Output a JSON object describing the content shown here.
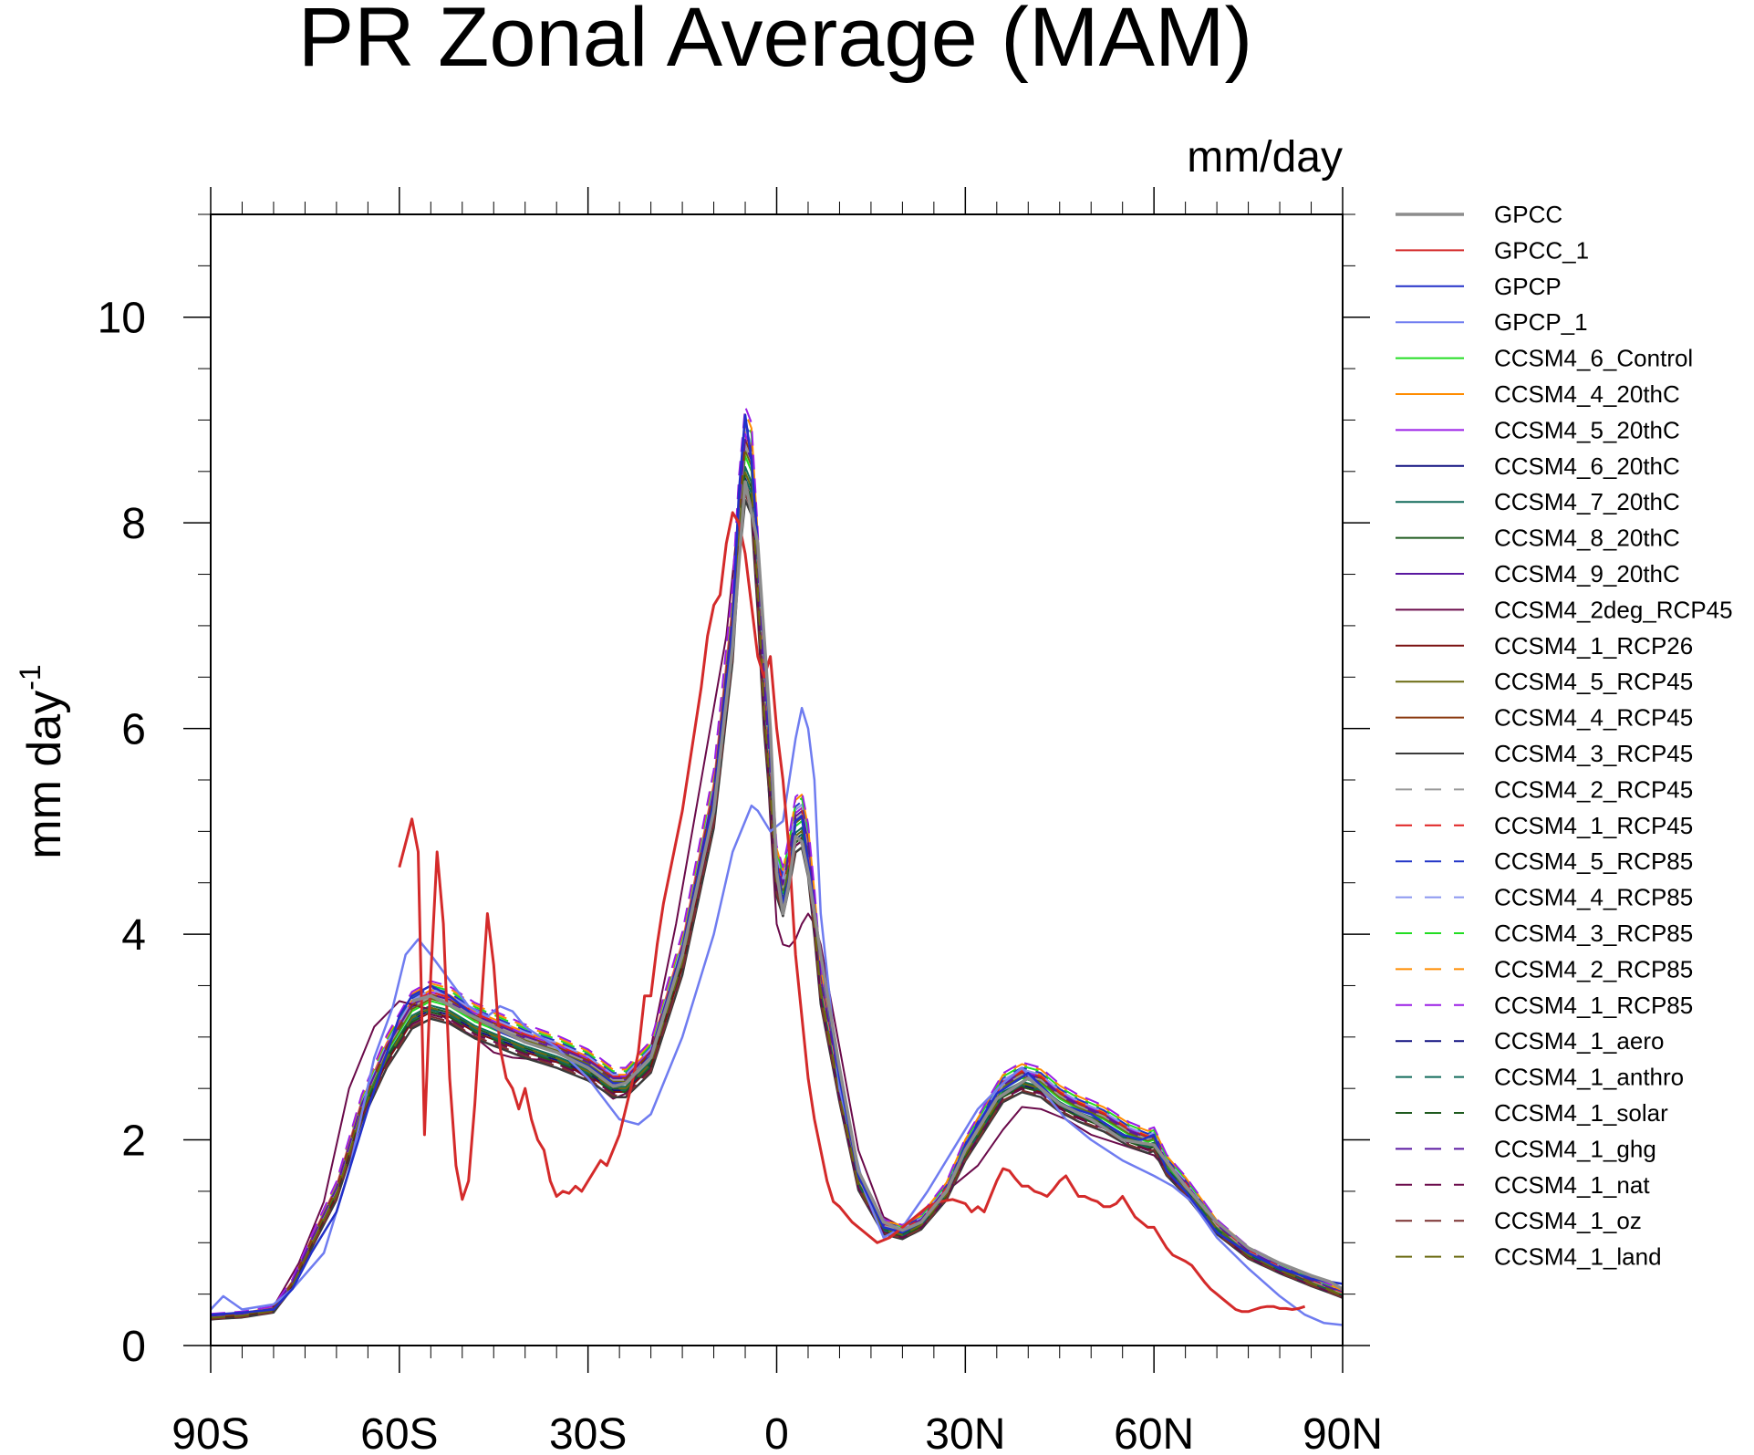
{
  "chart_data": {
    "type": "line",
    "title": "PR Zonal Average (MAM)",
    "units_label": "mm/day",
    "ylabel": "mm day",
    "ylabel_superscript": "-1",
    "xlabel": "",
    "xlim": [
      -90,
      90
    ],
    "ylim": [
      0,
      11
    ],
    "x_ticks": [
      {
        "value": -90,
        "label": "90S"
      },
      {
        "value": -60,
        "label": "60S"
      },
      {
        "value": -30,
        "label": "30S"
      },
      {
        "value": 0,
        "label": "0"
      },
      {
        "value": 30,
        "label": "30N"
      },
      {
        "value": 60,
        "label": "60N"
      },
      {
        "value": 90,
        "label": "90N"
      }
    ],
    "y_ticks": [
      {
        "value": 0,
        "label": "0"
      },
      {
        "value": 2,
        "label": "2"
      },
      {
        "value": 4,
        "label": "4"
      },
      {
        "value": 6,
        "label": "6"
      },
      {
        "value": 8,
        "label": "8"
      },
      {
        "value": 10,
        "label": "10"
      }
    ],
    "grid": false,
    "legend_position": "right",
    "series": [
      {
        "name": "GPCC",
        "color": "#8c8c8c",
        "style": "solid",
        "width": 3.5,
        "x": [
          -58,
          -55,
          -50,
          -45,
          -40,
          -35,
          -30,
          -26,
          -24,
          -20,
          -15,
          -10,
          -7,
          -5,
          -3,
          -1,
          0,
          1,
          2,
          3,
          4,
          5,
          7,
          10,
          13,
          17,
          20,
          23,
          27,
          30,
          35,
          40,
          45,
          50,
          55,
          60,
          65,
          70,
          75,
          80,
          85,
          88,
          90
        ],
        "y": [
          3.35,
          3.4,
          3.25,
          3.1,
          2.95,
          2.85,
          2.7,
          2.52,
          2.55,
          2.8,
          3.8,
          5.2,
          6.8,
          8.4,
          7.8,
          6.0,
          4.6,
          4.2,
          4.5,
          4.95,
          4.9,
          4.6,
          3.8,
          2.7,
          1.7,
          1.2,
          1.12,
          1.2,
          1.5,
          1.9,
          2.4,
          2.6,
          2.35,
          2.2,
          2.0,
          1.95,
          1.55,
          1.2,
          0.95,
          0.8,
          0.68,
          0.62,
          0.55
        ]
      },
      {
        "name": "GPCC_1",
        "color": "#d42a2a",
        "style": "solid",
        "width": 3,
        "x": [
          -60,
          -58,
          -57,
          -56,
          -55,
          -54,
          -53,
          -52,
          -51,
          -50,
          -49,
          -48,
          -47,
          -46,
          -45,
          -44,
          -43,
          -42,
          -41,
          -40,
          -39,
          -38,
          -37,
          -36,
          -35,
          -34,
          -33,
          -32,
          -31,
          -30,
          -29,
          -28,
          -27,
          -26,
          -25,
          -24,
          -23,
          -22,
          -21,
          -20,
          -19,
          -18,
          -17,
          -16,
          -15,
          -14,
          -13,
          -12,
          -11,
          -10,
          -9,
          -8,
          -7,
          -6,
          -5,
          -4,
          -3,
          -2,
          -1,
          0,
          1,
          2,
          3,
          4,
          5,
          6,
          7,
          8,
          9,
          10,
          12,
          14,
          16,
          18,
          20,
          22,
          24,
          26,
          28,
          30,
          31,
          32,
          33,
          34,
          35,
          36,
          37,
          38,
          39,
          40,
          41,
          42,
          43,
          44,
          45,
          46,
          47,
          48,
          49,
          50,
          51,
          52,
          53,
          54,
          55,
          56,
          57,
          58,
          59,
          60,
          61,
          62,
          63,
          64,
          65,
          66,
          67,
          68,
          69,
          70,
          71,
          72,
          73,
          74,
          75,
          76,
          77,
          78,
          79,
          80,
          81,
          82,
          83,
          84
        ],
        "y": [
          4.65,
          5.12,
          4.8,
          2.05,
          3.6,
          4.8,
          4.1,
          2.6,
          1.75,
          1.42,
          1.6,
          2.35,
          3.3,
          4.2,
          3.7,
          2.9,
          2.6,
          2.5,
          2.3,
          2.5,
          2.2,
          2.0,
          1.9,
          1.6,
          1.45,
          1.5,
          1.48,
          1.55,
          1.5,
          1.6,
          1.7,
          1.8,
          1.75,
          1.9,
          2.05,
          2.3,
          2.55,
          2.85,
          3.4,
          3.4,
          3.9,
          4.3,
          4.6,
          4.9,
          5.2,
          5.6,
          6.0,
          6.4,
          6.9,
          7.2,
          7.3,
          7.8,
          8.1,
          8.0,
          7.7,
          7.2,
          6.7,
          6.5,
          6.7,
          6.0,
          5.5,
          4.8,
          3.8,
          3.2,
          2.6,
          2.2,
          1.9,
          1.6,
          1.4,
          1.35,
          1.2,
          1.1,
          1.0,
          1.05,
          1.15,
          1.25,
          1.35,
          1.4,
          1.42,
          1.38,
          1.3,
          1.35,
          1.3,
          1.45,
          1.6,
          1.72,
          1.7,
          1.62,
          1.55,
          1.55,
          1.5,
          1.48,
          1.45,
          1.52,
          1.6,
          1.65,
          1.55,
          1.45,
          1.45,
          1.42,
          1.4,
          1.35,
          1.35,
          1.38,
          1.45,
          1.35,
          1.25,
          1.2,
          1.15,
          1.15,
          1.05,
          0.95,
          0.88,
          0.85,
          0.82,
          0.78,
          0.7,
          0.62,
          0.55,
          0.5,
          0.45,
          0.4,
          0.35,
          0.33,
          0.33,
          0.35,
          0.37,
          0.38,
          0.38,
          0.36,
          0.36,
          0.35,
          0.36,
          0.38
        ]
      },
      {
        "name": "GPCP",
        "color": "#2230c8",
        "style": "solid",
        "width": 2.5,
        "x": [
          -90,
          -85,
          -80,
          -77,
          -74,
          -70,
          -65,
          -60,
          -58,
          -55,
          -52,
          -48,
          -44,
          -40,
          -35,
          -30,
          -26,
          -24,
          -20,
          -15,
          -10,
          -7,
          -6,
          -5,
          -4,
          -3,
          -2,
          -1,
          0,
          1,
          2,
          3,
          4,
          5,
          7,
          10,
          13,
          17,
          20,
          23,
          27,
          30,
          35,
          40,
          45,
          50,
          55,
          58,
          60,
          62,
          65,
          70,
          75,
          80,
          85,
          88,
          90
        ],
        "y": [
          0.3,
          0.32,
          0.35,
          0.55,
          0.9,
          1.3,
          2.3,
          3.2,
          3.4,
          3.5,
          3.4,
          3.2,
          3.05,
          2.95,
          2.85,
          2.72,
          2.55,
          2.55,
          2.82,
          3.85,
          5.3,
          7.0,
          8.3,
          9.05,
          8.6,
          7.8,
          6.8,
          5.8,
          4.7,
          4.3,
          4.55,
          5.1,
          5.15,
          4.7,
          3.8,
          2.6,
          1.65,
          1.15,
          1.1,
          1.2,
          1.5,
          1.95,
          2.45,
          2.65,
          2.35,
          2.25,
          2.05,
          2.0,
          2.05,
          1.7,
          1.5,
          1.1,
          0.9,
          0.75,
          0.65,
          0.62,
          0.6
        ]
      },
      {
        "name": "GPCP_1",
        "color": "#6f7cf0",
        "style": "solid",
        "width": 2.5,
        "x": [
          -90,
          -88,
          -85,
          -80,
          -77,
          -72,
          -68,
          -64,
          -61,
          -59,
          -57,
          -55,
          -52,
          -49,
          -46,
          -44,
          -42,
          -40,
          -35,
          -30,
          -25,
          -22,
          -20,
          -15,
          -10,
          -7,
          -5,
          -4,
          -3,
          -2,
          -1,
          0,
          1,
          2,
          3,
          4,
          5,
          6,
          7,
          10,
          14,
          17,
          20,
          24,
          28,
          32,
          36,
          39,
          42,
          46,
          50,
          55,
          60,
          63,
          66,
          70,
          75,
          80,
          84,
          87,
          90
        ],
        "y": [
          0.35,
          0.48,
          0.35,
          0.4,
          0.55,
          0.9,
          1.7,
          2.8,
          3.3,
          3.8,
          3.95,
          3.8,
          3.55,
          3.3,
          3.2,
          3.3,
          3.25,
          3.1,
          2.9,
          2.6,
          2.2,
          2.15,
          2.25,
          3.0,
          4.0,
          4.8,
          5.1,
          5.25,
          5.2,
          5.1,
          5.0,
          5.05,
          5.1,
          5.5,
          5.9,
          6.2,
          6.0,
          5.5,
          4.2,
          2.5,
          1.5,
          1.05,
          1.15,
          1.5,
          1.9,
          2.3,
          2.55,
          2.7,
          2.5,
          2.2,
          2.0,
          1.8,
          1.65,
          1.55,
          1.4,
          1.05,
          0.75,
          0.48,
          0.3,
          0.22,
          0.2
        ]
      },
      {
        "name": "CCSM4_6_Control",
        "color": "#22dd22",
        "style": "solid",
        "width": 2,
        "shift": 0.0
      },
      {
        "name": "CCSM4_4_20thC",
        "color": "#ff8c00",
        "style": "solid",
        "width": 2,
        "shift": 0.05
      },
      {
        "name": "CCSM4_5_20thC",
        "color": "#9a1ee6",
        "style": "solid",
        "width": 2,
        "shift": 0.04
      },
      {
        "name": "CCSM4_6_20thC",
        "color": "#101080",
        "style": "solid",
        "width": 2,
        "shift": -0.04
      },
      {
        "name": "CCSM4_7_20thC",
        "color": "#106a5a",
        "style": "solid",
        "width": 2,
        "shift": -0.02
      },
      {
        "name": "CCSM4_8_20thC",
        "color": "#1e5a1e",
        "style": "solid",
        "width": 2,
        "shift": -0.03
      },
      {
        "name": "CCSM4_9_20thC",
        "color": "#5a18a0",
        "style": "solid",
        "width": 2,
        "shift": 0.02
      },
      {
        "name": "CCSM4_2deg_RCP45",
        "color": "#6a0a4a",
        "style": "solid",
        "width": 2,
        "x": [
          -90,
          -85,
          -80,
          -76,
          -72,
          -68,
          -64,
          -60,
          -57,
          -54,
          -51,
          -48,
          -45,
          -42,
          -38,
          -34,
          -30,
          -26,
          -24,
          -20,
          -16,
          -12,
          -8,
          -6,
          -5,
          -4,
          -3,
          -2,
          -1,
          0,
          1,
          2,
          3,
          4,
          5,
          6,
          7,
          10,
          13,
          17,
          20,
          24,
          28,
          32,
          36,
          39,
          42,
          46,
          50,
          55,
          60,
          65,
          70,
          75,
          80,
          85,
          88,
          90
        ],
        "y": [
          0.25,
          0.3,
          0.38,
          0.8,
          1.4,
          2.5,
          3.1,
          3.35,
          3.3,
          3.25,
          3.1,
          3.0,
          2.85,
          2.8,
          2.78,
          2.75,
          2.6,
          2.4,
          2.45,
          2.9,
          4.1,
          5.5,
          6.9,
          8.1,
          8.4,
          8.2,
          7.5,
          6.2,
          5.1,
          4.1,
          3.9,
          3.88,
          3.95,
          4.1,
          4.2,
          4.1,
          3.9,
          2.9,
          1.9,
          1.25,
          1.15,
          1.3,
          1.55,
          1.75,
          2.1,
          2.32,
          2.3,
          2.2,
          2.05,
          1.95,
          1.85,
          1.5,
          1.1,
          0.9,
          0.75,
          0.62,
          0.58,
          0.55
        ]
      },
      {
        "name": "CCSM4_1_RCP26",
        "color": "#7a1010",
        "style": "solid",
        "width": 2,
        "shift": -0.05
      },
      {
        "name": "CCSM4_5_RCP45",
        "color": "#6a6a10",
        "style": "solid",
        "width": 2,
        "shift": 0.01
      },
      {
        "name": "CCSM4_4_RCP45",
        "color": "#8a3a10",
        "style": "solid",
        "width": 2,
        "shift": 0.03
      },
      {
        "name": "CCSM4_3_RCP45",
        "color": "#3a3a3a",
        "style": "solid",
        "width": 2.5,
        "shift": -0.08
      },
      {
        "name": "CCSM4_2_RCP45",
        "color": "#9a9a9a",
        "style": "dashed",
        "width": 2,
        "shift": 0.02
      },
      {
        "name": "CCSM4_1_RCP45",
        "color": "#e02020",
        "style": "dashed",
        "width": 2,
        "shift": 0.04
      },
      {
        "name": "CCSM4_5_RCP85",
        "color": "#2236c8",
        "style": "dashed",
        "width": 2,
        "shift": 0.06
      },
      {
        "name": "CCSM4_4_RCP85",
        "color": "#8a96f0",
        "style": "dashed",
        "width": 2,
        "shift": 0.05
      },
      {
        "name": "CCSM4_3_RCP85",
        "color": "#22dd22",
        "style": "dashed",
        "width": 2,
        "shift": 0.07
      },
      {
        "name": "CCSM4_2_RCP85",
        "color": "#ff8c00",
        "style": "dashed",
        "width": 2,
        "shift": 0.08
      },
      {
        "name": "CCSM4_1_RCP85",
        "color": "#9a1ee6",
        "style": "dashed",
        "width": 2,
        "shift": 0.09
      },
      {
        "name": "CCSM4_1_aero",
        "color": "#101080",
        "style": "dashed",
        "width": 2,
        "shift": -0.06
      },
      {
        "name": "CCSM4_1_anthro",
        "color": "#106a5a",
        "style": "dashed",
        "width": 2,
        "shift": -0.04
      },
      {
        "name": "CCSM4_1_solar",
        "color": "#1e5a1e",
        "style": "dashed",
        "width": 2,
        "shift": -0.05
      },
      {
        "name": "CCSM4_1_ghg",
        "color": "#5a18a0",
        "style": "dashed",
        "width": 2,
        "shift": 0.03
      },
      {
        "name": "CCSM4_1_nat",
        "color": "#6a0a4a",
        "style": "dashed",
        "width": 2,
        "shift": -0.06
      },
      {
        "name": "CCSM4_1_oz",
        "color": "#7a3030",
        "style": "dashed",
        "width": 2,
        "shift": -0.07
      },
      {
        "name": "CCSM4_1_land",
        "color": "#6a6a10",
        "style": "dashed",
        "width": 2,
        "shift": -0.03
      }
    ],
    "model_base": {
      "x": [
        -90,
        -85,
        -80,
        -77,
        -74,
        -70,
        -66,
        -62,
        -60,
        -58,
        -55,
        -52,
        -48,
        -44,
        -40,
        -35,
        -30,
        -26,
        -24,
        -20,
        -15,
        -10,
        -7,
        -6,
        -5,
        -4,
        -3,
        -2,
        -1,
        0,
        1,
        2,
        3,
        4,
        5,
        6,
        7,
        10,
        13,
        17,
        20,
        23,
        27,
        30,
        33,
        36,
        39,
        42,
        45,
        48,
        52,
        56,
        59,
        60,
        62,
        65,
        70,
        75,
        80,
        85,
        88,
        90
      ],
      "y": [
        0.28,
        0.3,
        0.35,
        0.6,
        1.0,
        1.5,
        2.3,
        2.85,
        3.05,
        3.25,
        3.35,
        3.3,
        3.15,
        3.05,
        2.95,
        2.85,
        2.72,
        2.55,
        2.55,
        2.8,
        3.8,
        5.3,
        7.0,
        8.0,
        8.65,
        8.5,
        7.5,
        6.3,
        5.5,
        4.6,
        4.4,
        4.7,
        5.05,
        5.1,
        4.8,
        4.2,
        3.5,
        2.5,
        1.6,
        1.15,
        1.1,
        1.2,
        1.5,
        1.9,
        2.2,
        2.5,
        2.6,
        2.55,
        2.4,
        2.3,
        2.2,
        2.05,
        1.98,
        2.0,
        1.75,
        1.55,
        1.15,
        0.9,
        0.75,
        0.62,
        0.55,
        0.5
      ]
    }
  }
}
